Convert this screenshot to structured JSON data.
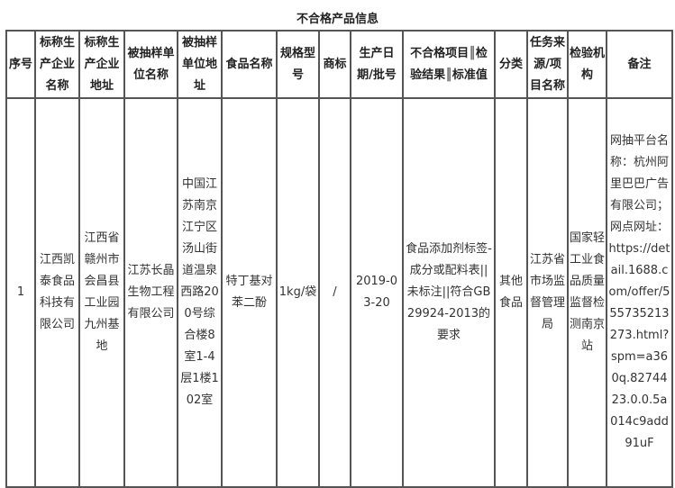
{
  "title": "不合格产品信息",
  "headers": [
    "序号",
    "标称生产企业名称",
    "标称生产企业地址",
    "被抽样单位名称",
    "被抽样单位地址",
    "食品名称",
    "规格型号",
    "商标",
    "生产日期/批号",
    "不合格项目║检验结果║标准值",
    "分类",
    "任务来源/项目名称",
    "检验机构",
    "备注"
  ],
  "rows": [
    [
      "1",
      "江西凯泰食品科技有限公司",
      "江西省赣州市会昌县工业园九州基地",
      "江苏长晶生物工程有限公司",
      "中国江苏南京江宁区汤山街道温泉西路200号综合楼8室1-4层1楼102室",
      "特丁基对苯二酚",
      "1kg/袋",
      "/",
      "2019-03-20",
      "食品添加剂标签-成分或配料表||未标注||符合GB29924-2013的要求",
      "其他食品",
      "江苏省市场监督管理局",
      "国家轻工业食品质量监督检测南京站",
      "网抽平台名称：杭州阿里巴巴广告有限公司；网点网址：https://detail.1688.com/offer/555735213273.html?spm=a360q.8274423.0.0.5a014c9add91uF"
    ]
  ]
}
